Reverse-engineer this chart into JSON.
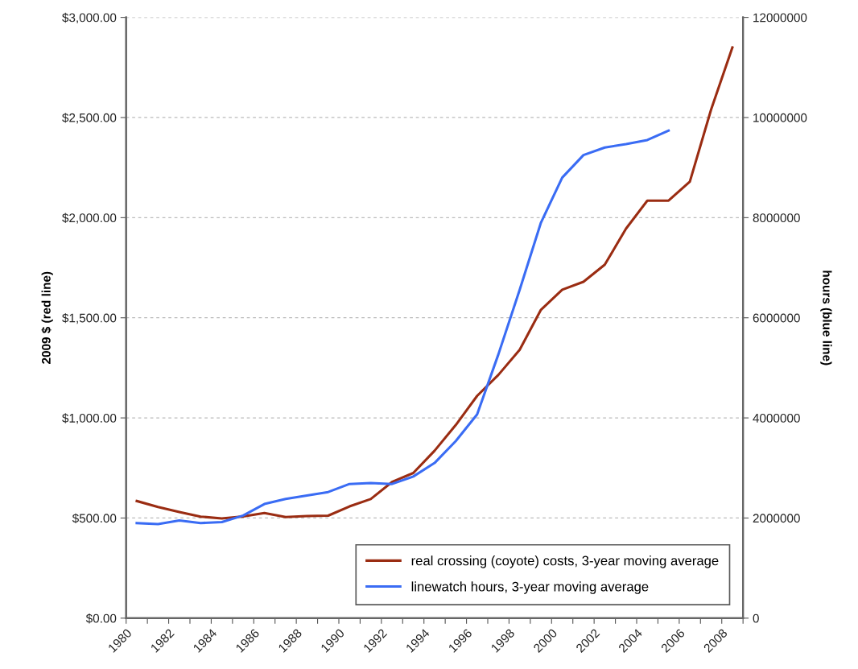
{
  "chart_data": {
    "type": "line",
    "ylabel": "2009 $ (red line)",
    "y2label": "hours (blue line)",
    "x": [
      1980,
      1981,
      1982,
      1983,
      1984,
      1985,
      1986,
      1987,
      1988,
      1989,
      1990,
      1991,
      1992,
      1993,
      1994,
      1995,
      1996,
      1997,
      1998,
      1999,
      2000,
      2001,
      2002,
      2003,
      2004,
      2005,
      2006,
      2007,
      2008
    ],
    "series": [
      {
        "name": "real crossing (coyote) costs, 3-year moving average",
        "color": "#9a2c12",
        "values": [
          585,
          555,
          530,
          507,
          498,
          508,
          525,
          505,
          510,
          512,
          558,
          595,
          680,
          725,
          836,
          965,
          1110,
          1215,
          1340,
          1540,
          1640,
          1680,
          1765,
          1945,
          2085,
          2085,
          2180,
          2540,
          2850
        ]
      },
      {
        "name": "linewatch hours, 3-year moving average",
        "color": "#3a6cf4",
        "axis": "y2",
        "values": [
          1900000,
          1880000,
          1950000,
          1900000,
          1920000,
          2050000,
          2280000,
          2380000,
          2450000,
          2520000,
          2680000,
          2700000,
          2680000,
          2830000,
          3100000,
          3540000,
          4070000,
          5270000,
          6560000,
          7900000,
          8800000,
          9250000,
          9400000,
          9470000,
          9550000,
          9740000,
          null,
          null,
          null
        ]
      }
    ],
    "xlim": [
      1979.5,
      2008.5
    ],
    "xticks": [
      {
        "value": 1979.5,
        "label": "1980"
      },
      {
        "value": 1980.5,
        "label": null
      },
      {
        "value": 1981.5,
        "label": "1982"
      },
      {
        "value": 1982.5,
        "label": null
      },
      {
        "value": 1983.5,
        "label": "1984"
      },
      {
        "value": 1984.5,
        "label": null
      },
      {
        "value": 1985.5,
        "label": "1986"
      },
      {
        "value": 1986.5,
        "label": null
      },
      {
        "value": 1987.5,
        "label": "1988"
      },
      {
        "value": 1988.5,
        "label": null
      },
      {
        "value": 1989.5,
        "label": "1990"
      },
      {
        "value": 1990.5,
        "label": null
      },
      {
        "value": 1991.5,
        "label": "1992"
      },
      {
        "value": 1992.5,
        "label": null
      },
      {
        "value": 1993.5,
        "label": "1994"
      },
      {
        "value": 1994.5,
        "label": null
      },
      {
        "value": 1995.5,
        "label": "1996"
      },
      {
        "value": 1996.5,
        "label": null
      },
      {
        "value": 1997.5,
        "label": "1998"
      },
      {
        "value": 1998.5,
        "label": null
      },
      {
        "value": 1999.5,
        "label": "2000"
      },
      {
        "value": 2000.5,
        "label": null
      },
      {
        "value": 2001.5,
        "label": "2002"
      },
      {
        "value": 2002.5,
        "label": null
      },
      {
        "value": 2003.5,
        "label": "2004"
      },
      {
        "value": 2004.5,
        "label": null
      },
      {
        "value": 2005.5,
        "label": "2006"
      },
      {
        "value": 2006.5,
        "label": null
      },
      {
        "value": 2007.5,
        "label": "2008"
      },
      {
        "value": 2008.5,
        "label": null
      }
    ],
    "ylim": [
      0,
      3000
    ],
    "yticks": [
      {
        "value": 0,
        "label": "$0.00"
      },
      {
        "value": 500,
        "label": "$500.00"
      },
      {
        "value": 1000,
        "label": "$1,000.00"
      },
      {
        "value": 1500,
        "label": "$1,500.00"
      },
      {
        "value": 2000,
        "label": "$2,000.00"
      },
      {
        "value": 2500,
        "label": "$2,500.00"
      },
      {
        "value": 3000,
        "label": "$3,000.00"
      }
    ],
    "y2lim": [
      0,
      12000000
    ],
    "y2ticks": [
      0,
      2000000,
      4000000,
      6000000,
      8000000,
      10000000,
      12000000
    ],
    "grid": "y",
    "legend": "bottom right",
    "marker": "none",
    "line_style": "solid"
  }
}
